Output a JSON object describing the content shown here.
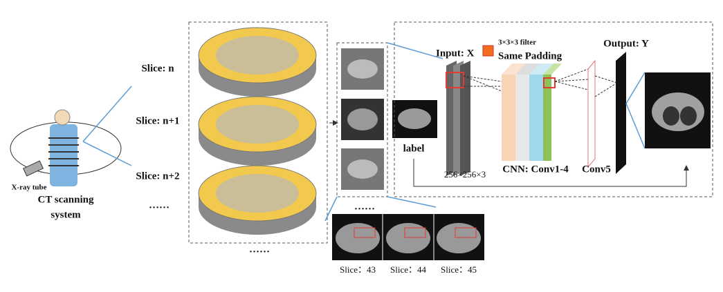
{
  "ct_system": {
    "tube_label": "X-ray tube",
    "title": [
      "CT scanning",
      "system"
    ]
  },
  "slices": {
    "labels": [
      "Slice: n",
      "Slice: n+1",
      "Slice: n+2"
    ],
    "more": "……",
    "stack_more": "……"
  },
  "samples": {
    "more": "……",
    "label": "label"
  },
  "network": {
    "input": "Input: X",
    "filter": "3×3×3 filter",
    "padding": "Same Padding",
    "output": "Output: Y",
    "size": "256×256×3",
    "cnn": "CNN: Conv1-4",
    "conv5": "Conv5"
  },
  "examples": [
    "Slice：43",
    "Slice：44",
    "Slice：45"
  ]
}
